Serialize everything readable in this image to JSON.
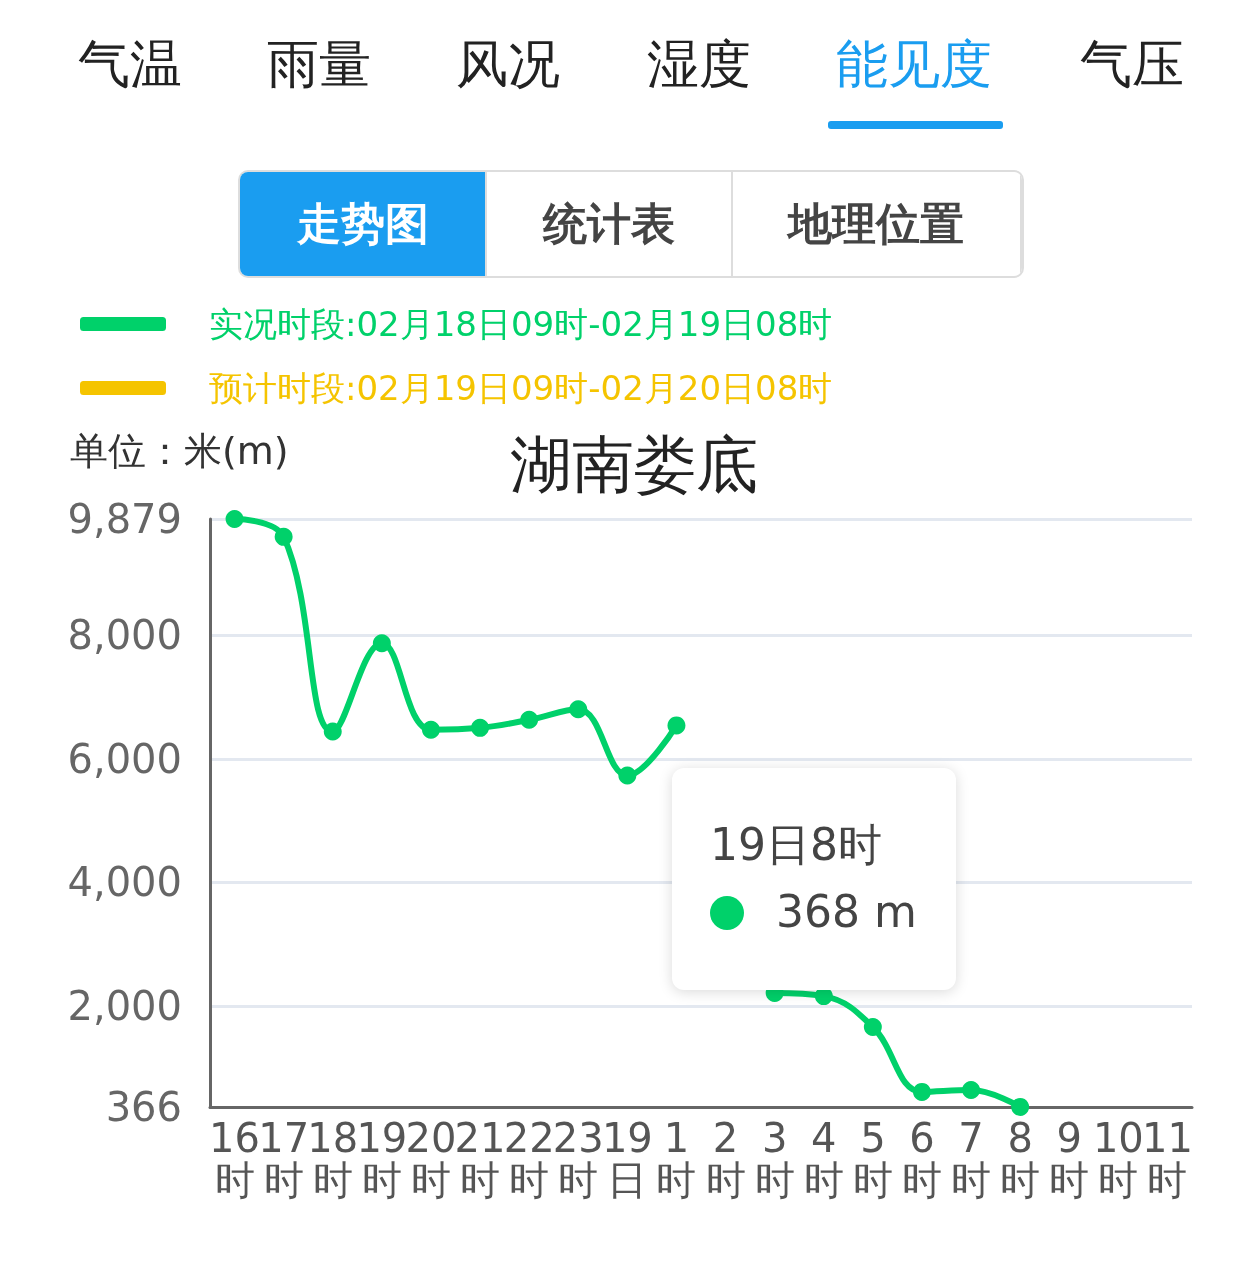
{
  "chart_data": {
    "type": "line",
    "title": "湖南娄底",
    "ylabel": "单位：米(m)",
    "categories": [
      "16时",
      "17时",
      "18时",
      "19时",
      "20时",
      "21时",
      "22时",
      "23时",
      "19日",
      "1时",
      "2时",
      "3时",
      "4时",
      "5时",
      "6时",
      "7时",
      "8时",
      "9时",
      "10时",
      "11时"
    ],
    "series": [
      {
        "name": "实况时段:02月18日09时-02月19日08时",
        "color": "#00d16a",
        "values": [
          9879,
          9590,
          6440,
          7870,
          6470,
          6500,
          6630,
          6800,
          5730,
          6540,
          null,
          2210,
          2160,
          1660,
          610,
          640,
          368,
          null,
          null,
          null
        ]
      },
      {
        "name": "预计时段:02月19日09时-02月20日08时",
        "color": "#f5c400",
        "values": [
          null,
          null,
          null,
          null,
          null,
          null,
          null,
          null,
          null,
          null,
          null,
          null,
          null,
          null,
          null,
          null,
          null,
          null,
          null,
          null
        ]
      }
    ],
    "ylim": [
      366,
      9879
    ],
    "yticks": [
      366,
      {
        "value": 2000,
        "label": "2,000"
      },
      {
        "value": 4000,
        "label": "4,000"
      },
      {
        "value": 6000,
        "label": "6,000"
      },
      {
        "value": 8000,
        "label": "8,000"
      },
      {
        "value": 9879,
        "label": "9,879"
      }
    ],
    "grid": "y",
    "legend": "top left",
    "marker": "circle",
    "line_style": "solid",
    "annotations": [
      "气温",
      "雨量",
      "风况",
      "湿度",
      "能见度",
      "气压",
      "走势图",
      "统计表",
      "地理位置",
      "19日8时",
      "368 m"
    ]
  }
}
